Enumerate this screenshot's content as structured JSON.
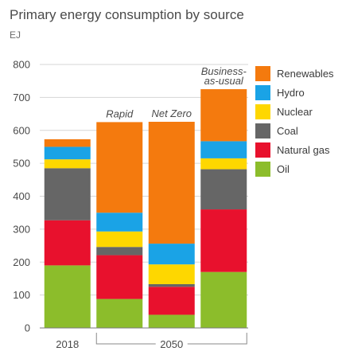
{
  "chart_data": {
    "type": "bar",
    "stacked": true,
    "title": "Primary energy consumption by source",
    "unit": "EJ",
    "ylim": [
      0,
      800
    ],
    "yticks": [
      0,
      100,
      200,
      300,
      400,
      500,
      600,
      700,
      800
    ],
    "grid": true,
    "legend_position": "right",
    "categories": [
      "2018",
      "Rapid",
      "Net Zero",
      "Business-as-usual"
    ],
    "annotations": [
      "",
      "Rapid",
      "Net Zero",
      "Business-as-usual"
    ],
    "annotation_lines": [
      [],
      [
        "Rapid"
      ],
      [
        "Net Zero"
      ],
      [
        "Business-",
        "as-usual"
      ]
    ],
    "x_labels": [
      {
        "text": "2018",
        "from": 0,
        "to": 0,
        "bracket": false
      },
      {
        "text": "2050",
        "from": 1,
        "to": 3,
        "bracket": true
      }
    ],
    "series": [
      {
        "name": "Oil",
        "color": "#8cbd2b",
        "values": [
          190,
          88,
          40,
          170
        ]
      },
      {
        "name": "Natural gas",
        "color": "#e8112d",
        "values": [
          137,
          133,
          85,
          190
        ]
      },
      {
        "name": "Coal",
        "color": "#666666",
        "values": [
          158,
          25,
          8,
          122
        ]
      },
      {
        "name": "Nuclear",
        "color": "#fed700",
        "values": [
          27,
          47,
          60,
          33
        ]
      },
      {
        "name": "Hydro",
        "color": "#1aa3e6",
        "values": [
          38,
          57,
          63,
          52
        ]
      },
      {
        "name": "Renewables",
        "color": "#f47a0e",
        "values": [
          23,
          275,
          370,
          158
        ]
      }
    ],
    "legend_order": [
      "Renewables",
      "Hydro",
      "Nuclear",
      "Coal",
      "Natural gas",
      "Oil"
    ]
  }
}
